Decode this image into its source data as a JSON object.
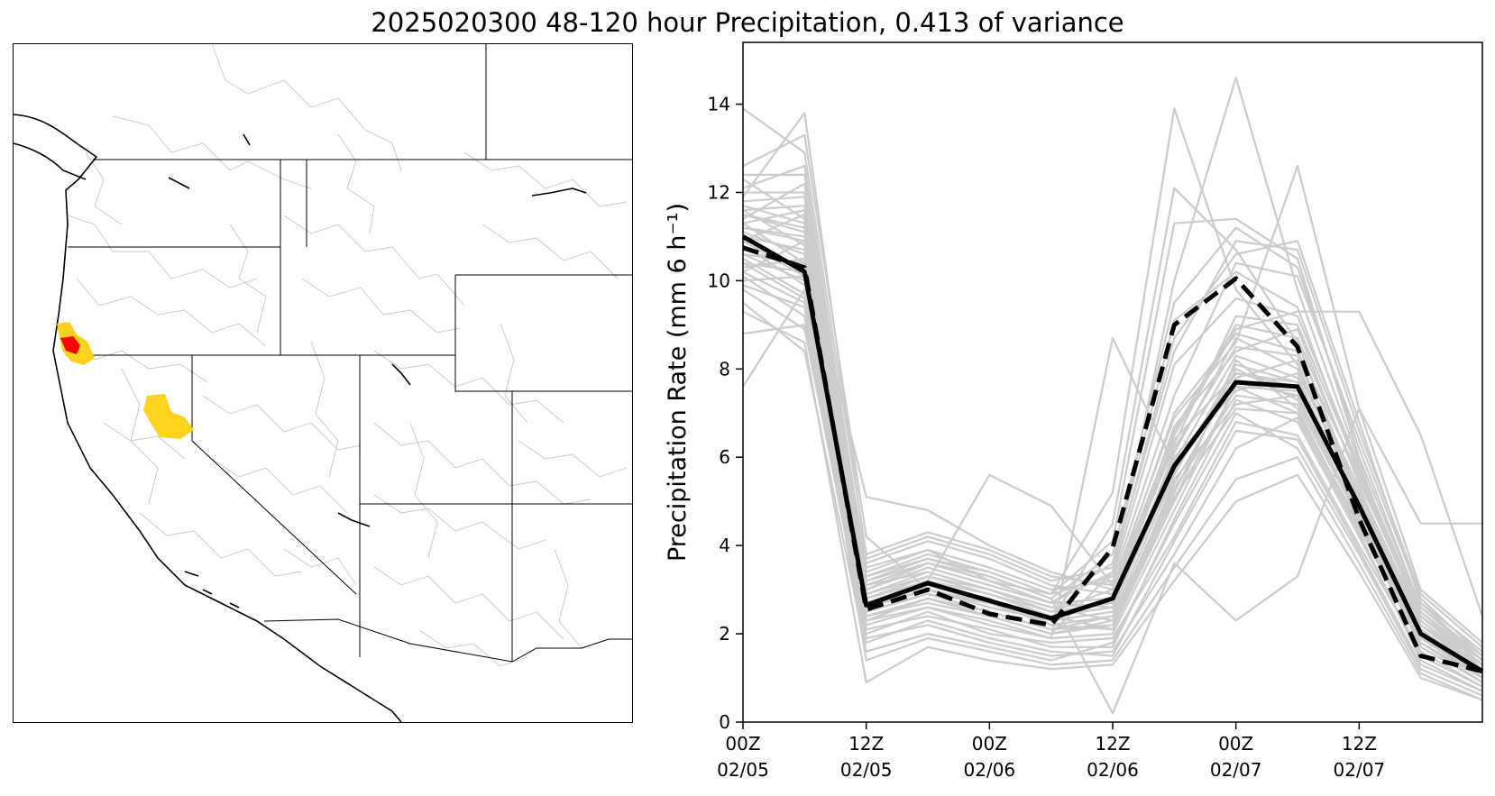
{
  "figure": {
    "title": "2025020300 48-120 hour Precipitation, 0.413 of variance"
  },
  "map": {
    "region": "Western United States",
    "highlight_colors": {
      "high": "#ff0000",
      "mid": "#ffd21f",
      "basin_lines": "#bbbbbb",
      "borders": "#000000"
    }
  },
  "chart_data": {
    "type": "line",
    "title": "2025020300 48-120 hour Precipitation, 0.413 of variance",
    "xlabel": "",
    "ylabel": "Precipitation Rate (mm 6 h⁻¹)",
    "ylim": [
      0,
      15.4
    ],
    "xlim": [
      0,
      12
    ],
    "yticks": [
      0,
      2,
      4,
      6,
      8,
      10,
      12,
      14
    ],
    "xticks": [
      {
        "x": 0,
        "line1": "00Z",
        "line2": "02/05"
      },
      {
        "x": 2,
        "line1": "12Z",
        "line2": "02/05"
      },
      {
        "x": 4,
        "line1": "00Z",
        "line2": "02/06"
      },
      {
        "x": 6,
        "line1": "12Z",
        "line2": "02/06"
      },
      {
        "x": 8,
        "line1": "00Z",
        "line2": "02/07"
      },
      {
        "x": 10,
        "line1": "12Z",
        "line2": "02/07"
      }
    ],
    "x": [
      0,
      1,
      2,
      3,
      4,
      5,
      6,
      7,
      8,
      9,
      10,
      11,
      12
    ],
    "series": [
      {
        "name": "solid",
        "style": "solid",
        "color": "#000000",
        "values": [
          11.0,
          10.2,
          2.65,
          3.15,
          2.75,
          2.35,
          2.8,
          5.8,
          7.7,
          7.6,
          4.9,
          2.0,
          1.15
        ]
      },
      {
        "name": "dashed",
        "style": "dashed",
        "color": "#000000",
        "values": [
          10.75,
          10.3,
          2.55,
          3.0,
          2.45,
          2.2,
          3.95,
          9.0,
          10.05,
          8.5,
          4.6,
          1.5,
          1.15
        ]
      }
    ],
    "ensemble_color": "#cccccc",
    "ensemble": [
      [
        11.2,
        11.0,
        3.0,
        3.5,
        3.1,
        2.7,
        2.6,
        6.0,
        7.5,
        7.9,
        5.2,
        2.2,
        1.1
      ],
      [
        10.4,
        9.6,
        2.3,
        2.8,
        2.5,
        2.1,
        2.2,
        5.0,
        8.2,
        7.1,
        4.4,
        1.8,
        0.9
      ],
      [
        12.1,
        12.6,
        3.4,
        3.9,
        3.2,
        2.9,
        3.3,
        8.1,
        9.6,
        9.2,
        5.8,
        2.5,
        1.4
      ],
      [
        9.8,
        8.9,
        2.0,
        2.5,
        2.0,
        1.8,
        1.9,
        4.2,
        6.8,
        6.5,
        4.0,
        1.6,
        0.8
      ],
      [
        11.6,
        10.8,
        2.8,
        3.2,
        2.9,
        2.5,
        3.0,
        7.0,
        8.8,
        8.4,
        5.6,
        2.4,
        1.3
      ],
      [
        10.9,
        11.5,
        3.6,
        4.1,
        3.7,
        3.1,
        2.9,
        6.4,
        7.9,
        7.7,
        4.8,
        2.0,
        1.2
      ],
      [
        12.6,
        13.3,
        4.2,
        3.0,
        2.6,
        2.3,
        4.5,
        12.1,
        10.7,
        8.6,
        5.1,
        1.9,
        1.0
      ],
      [
        10.1,
        9.2,
        1.9,
        2.2,
        1.8,
        1.5,
        1.6,
        3.8,
        6.2,
        6.9,
        4.3,
        1.4,
        0.7
      ],
      [
        11.4,
        12.2,
        3.1,
        3.6,
        3.3,
        2.8,
        3.8,
        9.5,
        11.2,
        10.3,
        6.2,
        2.6,
        1.5
      ],
      [
        10.6,
        10.0,
        2.5,
        2.9,
        2.7,
        2.4,
        2.1,
        5.5,
        7.2,
        7.4,
        4.6,
        2.1,
        1.1
      ],
      [
        11.8,
        11.9,
        3.3,
        3.7,
        3.4,
        2.9,
        5.2,
        13.9,
        9.8,
        8.1,
        5.0,
        2.3,
        1.2
      ],
      [
        9.5,
        8.4,
        1.6,
        2.0,
        1.7,
        1.4,
        1.8,
        4.5,
        7.0,
        6.2,
        3.8,
        1.2,
        0.6
      ],
      [
        12.3,
        11.4,
        2.9,
        3.4,
        3.0,
        2.6,
        2.7,
        6.7,
        8.4,
        8.9,
        5.4,
        2.7,
        1.6
      ],
      [
        10.3,
        10.5,
        2.7,
        3.1,
        2.8,
        2.2,
        2.4,
        5.2,
        8.0,
        7.3,
        4.7,
        1.7,
        0.9
      ],
      [
        11.1,
        10.6,
        2.4,
        2.8,
        2.4,
        2.0,
        3.4,
        10.0,
        14.6,
        9.8,
        5.9,
        2.2,
        1.3
      ],
      [
        13.9,
        12.9,
        3.8,
        4.3,
        3.9,
        3.3,
        3.1,
        6.9,
        8.6,
        12.6,
        7.1,
        3.0,
        1.8
      ],
      [
        10.8,
        9.9,
        2.2,
        2.6,
        2.3,
        1.9,
        2.0,
        4.8,
        7.6,
        7.0,
        4.5,
        1.9,
        1.0
      ],
      [
        11.5,
        11.1,
        3.2,
        3.6,
        3.2,
        2.7,
        2.8,
        6.3,
        9.2,
        9.0,
        5.7,
        2.4,
        1.4
      ],
      [
        9.9,
        9.4,
        2.1,
        2.4,
        2.1,
        1.7,
        1.7,
        4.6,
        7.3,
        6.8,
        4.2,
        1.5,
        0.8
      ],
      [
        12.0,
        12.0,
        3.5,
        3.9,
        3.5,
        3.0,
        3.2,
        7.4,
        10.4,
        10.1,
        6.4,
        2.8,
        1.5
      ],
      [
        10.7,
        10.3,
        2.6,
        3.0,
        2.6,
        2.3,
        2.5,
        5.9,
        8.3,
        7.8,
        4.9,
        2.0,
        1.1
      ],
      [
        11.3,
        10.4,
        2.8,
        3.3,
        3.0,
        2.6,
        2.3,
        5.4,
        7.8,
        8.2,
        5.3,
        2.3,
        1.2
      ],
      [
        7.6,
        9.8,
        1.4,
        1.9,
        1.6,
        1.3,
        1.4,
        3.5,
        5.5,
        6.0,
        3.6,
        1.1,
        0.5
      ],
      [
        10.2,
        10.9,
        2.9,
        3.3,
        2.9,
        2.4,
        2.6,
        6.1,
        8.7,
        8.0,
        5.0,
        2.1,
        1.0
      ],
      [
        11.9,
        13.8,
        3.7,
        4.2,
        3.8,
        3.2,
        3.5,
        8.4,
        10.9,
        10.7,
        6.6,
        2.9,
        1.7
      ],
      [
        10.5,
        9.7,
        2.4,
        2.7,
        2.4,
        2.0,
        2.2,
        5.3,
        7.4,
        7.2,
        4.6,
        1.8,
        0.9
      ],
      [
        8.8,
        9.0,
        1.8,
        2.3,
        1.9,
        1.6,
        1.5,
        4.1,
        6.6,
        6.4,
        3.9,
        1.3,
        0.7
      ],
      [
        11.7,
        11.3,
        3.0,
        3.5,
        3.1,
        2.7,
        3.6,
        9.1,
        10.2,
        9.4,
        5.6,
        2.5,
        1.3
      ],
      [
        10.0,
        10.1,
        2.6,
        3.0,
        2.7,
        2.2,
        2.1,
        5.0,
        7.6,
        7.5,
        4.8,
        2.0,
        1.0
      ],
      [
        11.0,
        10.7,
        5.1,
        4.8,
        4.0,
        3.4,
        3.0,
        6.6,
        9.0,
        8.7,
        5.5,
        2.4,
        1.2
      ],
      [
        9.3,
        8.6,
        0.9,
        1.7,
        1.4,
        1.2,
        1.3,
        3.2,
        5.0,
        5.6,
        3.4,
        1.0,
        0.5
      ],
      [
        12.4,
        12.4,
        3.3,
        3.8,
        3.4,
        2.9,
        4.1,
        11.3,
        11.4,
        10.5,
        6.0,
        2.6,
        1.4
      ],
      [
        10.6,
        10.4,
        2.5,
        2.9,
        2.5,
        2.1,
        2.4,
        5.6,
        8.1,
        7.7,
        4.7,
        1.9,
        1.1
      ],
      [
        11.2,
        10.9,
        2.7,
        3.2,
        5.6,
        4.9,
        3.1,
        6.2,
        8.5,
        8.3,
        5.1,
        2.2,
        1.2
      ],
      [
        10.2,
        9.5,
        2.3,
        2.6,
        2.2,
        1.9,
        8.7,
        5.8,
        7.9,
        7.6,
        4.5,
        1.7,
        0.9
      ],
      [
        11.5,
        11.2,
        3.1,
        3.4,
        3.0,
        2.5,
        2.7,
        6.5,
        8.9,
        9.3,
        9.3,
        6.5,
        2.4
      ],
      [
        10.9,
        10.1,
        2.6,
        3.1,
        2.7,
        2.4,
        2.6,
        5.7,
        7.7,
        7.4,
        4.6,
        2.0,
        1.1
      ],
      [
        11.6,
        11.7,
        3.2,
        3.7,
        3.3,
        2.8,
        0.2,
        3.6,
        2.3,
        3.3,
        7.1,
        4.5,
        4.5
      ],
      [
        10.4,
        10.2,
        2.4,
        2.8,
        2.4,
        2.0,
        2.3,
        5.1,
        7.1,
        7.0,
        4.4,
        1.8,
        1.0
      ],
      [
        11.3,
        11.6,
        3.0,
        3.6,
        3.2,
        2.7,
        3.4,
        8.7,
        10.6,
        10.9,
        6.8,
        2.7,
        1.4
      ]
    ]
  }
}
